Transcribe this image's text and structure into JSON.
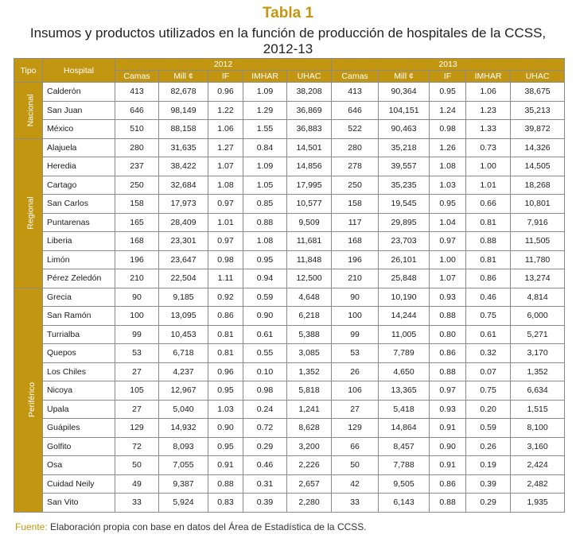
{
  "title": "Tabla 1",
  "subtitle": "Insumos y productos utilizados en la función de producción de hospitales de la CCSS, 2012-13",
  "headers": {
    "tipo": "Tipo",
    "hospital": "Hospital",
    "year1": "2012",
    "year2": "2013",
    "cols": [
      "Camas",
      "Mill ¢",
      "IF",
      "IMHAR",
      "UHAC"
    ]
  },
  "groups": [
    {
      "tipo": "Nacional",
      "rows": [
        [
          "Calderón",
          "413",
          "82,678",
          "0.96",
          "1.09",
          "38,208",
          "413",
          "90,364",
          "0.95",
          "1.06",
          "38,675"
        ],
        [
          "San Juan",
          "646",
          "98,149",
          "1.22",
          "1.29",
          "36,869",
          "646",
          "104,151",
          "1.24",
          "1.23",
          "35,213"
        ],
        [
          "México",
          "510",
          "88,158",
          "1.06",
          "1.55",
          "36,883",
          "522",
          "90,463",
          "0.98",
          "1.33",
          "39,872"
        ]
      ]
    },
    {
      "tipo": "Regional",
      "rows": [
        [
          "Alajuela",
          "280",
          "31,635",
          "1.27",
          "0.84",
          "14,501",
          "280",
          "35,218",
          "1.26",
          "0.73",
          "14,326"
        ],
        [
          "Heredia",
          "237",
          "38,422",
          "1.07",
          "1.09",
          "14,856",
          "278",
          "39,557",
          "1.08",
          "1.00",
          "14,505"
        ],
        [
          "Cartago",
          "250",
          "32,684",
          "1.08",
          "1.05",
          "17,995",
          "250",
          "35,235",
          "1.03",
          "1.01",
          "18,268"
        ],
        [
          "San Carlos",
          "158",
          "17,973",
          "0.97",
          "0.85",
          "10,577",
          "158",
          "19,545",
          "0.95",
          "0.66",
          "10,801"
        ],
        [
          "Puntarenas",
          "165",
          "28,409",
          "1.01",
          "0.88",
          "9,509",
          "117",
          "29,895",
          "1.04",
          "0.81",
          "7,916"
        ],
        [
          "Liberia",
          "168",
          "23,301",
          "0.97",
          "1.08",
          "11,681",
          "168",
          "23,703",
          "0.97",
          "0.88",
          "11,505"
        ],
        [
          "Limón",
          "196",
          "23,647",
          "0.98",
          "0.95",
          "11,848",
          "196",
          "26,101",
          "1.00",
          "0.81",
          "11,780"
        ],
        [
          "Pérez Zeledón",
          "210",
          "22,504",
          "1.11",
          "0.94",
          "12,500",
          "210",
          "25,848",
          "1.07",
          "0.86",
          "13,274"
        ]
      ]
    },
    {
      "tipo": "Periférico",
      "rows": [
        [
          "Grecia",
          "90",
          "9,185",
          "0.92",
          "0.59",
          "4,648",
          "90",
          "10,190",
          "0.93",
          "0.46",
          "4,814"
        ],
        [
          "San Ramón",
          "100",
          "13,095",
          "0.86",
          "0.90",
          "6,218",
          "100",
          "14,244",
          "0.88",
          "0.75",
          "6,000"
        ],
        [
          "Turrialba",
          "99",
          "10,453",
          "0.81",
          "0.61",
          "5,388",
          "99",
          "11,005",
          "0.80",
          "0.61",
          "5,271"
        ],
        [
          "Quepos",
          "53",
          "6,718",
          "0.81",
          "0.55",
          "3,085",
          "53",
          "7,789",
          "0.86",
          "0.32",
          "3,170"
        ],
        [
          "Los Chiles",
          "27",
          "4,237",
          "0.96",
          "0.10",
          "1,352",
          "26",
          "4,650",
          "0.88",
          "0.07",
          "1,352"
        ],
        [
          "Nicoya",
          "105",
          "12,967",
          "0.95",
          "0.98",
          "5,818",
          "106",
          "13,365",
          "0.97",
          "0.75",
          "6,634"
        ],
        [
          "Upala",
          "27",
          "5,040",
          "1.03",
          "0.24",
          "1,241",
          "27",
          "5,418",
          "0.93",
          "0.20",
          "1,515"
        ],
        [
          "Guápiles",
          "129",
          "14,932",
          "0.90",
          "0.72",
          "8,628",
          "129",
          "14,864",
          "0.91",
          "0.59",
          "8,100"
        ],
        [
          "Golfito",
          "72",
          "8,093",
          "0.95",
          "0.29",
          "3,200",
          "66",
          "8,457",
          "0.90",
          "0.26",
          "3,160"
        ],
        [
          "Osa",
          "50",
          "7,055",
          "0.91",
          "0.46",
          "2,226",
          "50",
          "7,788",
          "0.91",
          "0.19",
          "2,424"
        ],
        [
          "Cuidad Neily",
          "49",
          "9,387",
          "0.88",
          "0.31",
          "2,657",
          "42",
          "9,505",
          "0.86",
          "0.39",
          "2,482"
        ],
        [
          "San Vito",
          "33",
          "5,924",
          "0.83",
          "0.39",
          "2,280",
          "33",
          "6,143",
          "0.88",
          "0.29",
          "1,935"
        ]
      ]
    }
  ],
  "source": {
    "label": "Fuente:",
    "text": " Elaboración propia con base en datos del Área de Estadística de la CCSS."
  }
}
